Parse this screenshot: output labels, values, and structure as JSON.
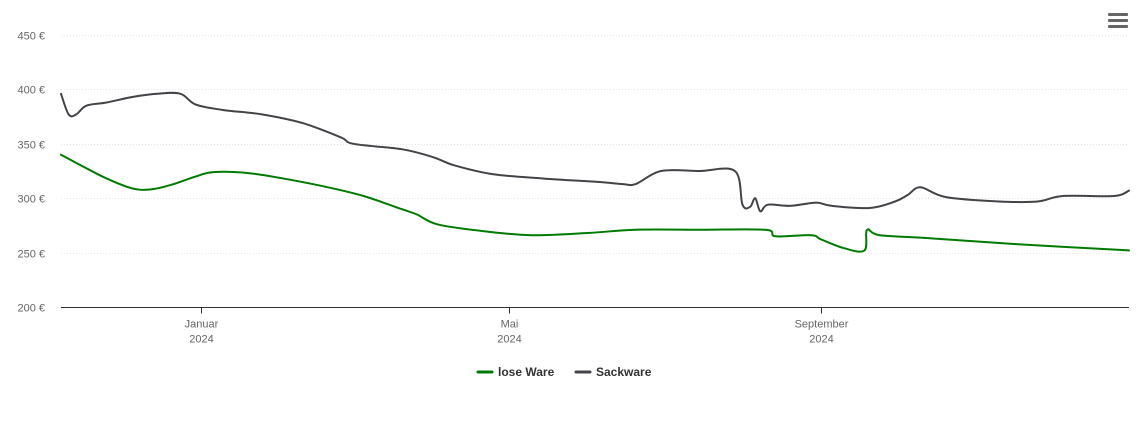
{
  "chart_data": {
    "type": "line",
    "x_axis_ticks": [
      {
        "date": "2024-01-01",
        "month": "Januar",
        "year": "2024"
      },
      {
        "date": "2024-05-01",
        "month": "Mai",
        "year": "2024"
      },
      {
        "date": "2024-09-01",
        "month": "September",
        "year": "2024"
      }
    ],
    "xlim": [
      "2023-11-07",
      "2024-12-31"
    ],
    "ylim": [
      200,
      450
    ],
    "y_ticks": [
      {
        "value": 200,
        "label": "200 €"
      },
      {
        "value": 250,
        "label": "250 €"
      },
      {
        "value": 300,
        "label": "300 €"
      },
      {
        "value": 350,
        "label": "350 €"
      },
      {
        "value": 400,
        "label": "400 €"
      },
      {
        "value": 450,
        "label": "450 €"
      }
    ],
    "grid": true,
    "legend_position": "bottom-center",
    "series": [
      {
        "name": "lose Ware",
        "color": "#007a00",
        "points": [
          [
            "2023-11-07",
            340
          ],
          [
            "2023-11-15",
            330
          ],
          [
            "2023-11-25",
            318
          ],
          [
            "2023-12-05",
            309
          ],
          [
            "2023-12-12",
            308
          ],
          [
            "2023-12-20",
            312
          ],
          [
            "2023-12-30",
            320
          ],
          [
            "2024-01-06",
            324
          ],
          [
            "2024-01-20",
            323
          ],
          [
            "2024-02-05",
            317
          ],
          [
            "2024-02-20",
            310
          ],
          [
            "2024-03-05",
            302
          ],
          [
            "2024-03-20",
            290
          ],
          [
            "2024-03-26",
            285
          ],
          [
            "2024-04-03",
            276
          ],
          [
            "2024-04-20",
            270
          ],
          [
            "2024-05-10",
            266
          ],
          [
            "2024-06-01",
            268
          ],
          [
            "2024-06-20",
            271
          ],
          [
            "2024-07-15",
            271
          ],
          [
            "2024-08-10",
            271
          ],
          [
            "2024-08-14",
            265
          ],
          [
            "2024-08-28",
            266
          ],
          [
            "2024-09-01",
            262
          ],
          [
            "2024-09-10",
            254
          ],
          [
            "2024-09-18",
            252
          ],
          [
            "2024-09-19",
            271
          ],
          [
            "2024-09-24",
            266
          ],
          [
            "2024-10-15",
            263
          ],
          [
            "2024-11-15",
            258
          ],
          [
            "2024-12-31",
            252
          ]
        ]
      },
      {
        "name": "Sackware",
        "color": "#434348",
        "points": [
          [
            "2023-11-07",
            396
          ],
          [
            "2023-11-10",
            377
          ],
          [
            "2023-11-13",
            377
          ],
          [
            "2023-11-17",
            385
          ],
          [
            "2023-11-25",
            388
          ],
          [
            "2023-12-05",
            393
          ],
          [
            "2023-12-15",
            396
          ],
          [
            "2023-12-24",
            396
          ],
          [
            "2023-12-30",
            386
          ],
          [
            "2024-01-10",
            381
          ],
          [
            "2024-01-25",
            377
          ],
          [
            "2024-02-10",
            369
          ],
          [
            "2024-02-25",
            356
          ],
          [
            "2024-03-01",
            350
          ],
          [
            "2024-03-20",
            345
          ],
          [
            "2024-04-01",
            338
          ],
          [
            "2024-04-10",
            330
          ],
          [
            "2024-04-25",
            322
          ],
          [
            "2024-05-15",
            318
          ],
          [
            "2024-06-05",
            315
          ],
          [
            "2024-06-15",
            313
          ],
          [
            "2024-06-20",
            313
          ],
          [
            "2024-06-30",
            325
          ],
          [
            "2024-07-15",
            325
          ],
          [
            "2024-07-29",
            325
          ],
          [
            "2024-08-01",
            294
          ],
          [
            "2024-08-04",
            292
          ],
          [
            "2024-08-06",
            300
          ],
          [
            "2024-08-08",
            288
          ],
          [
            "2024-08-11",
            294
          ],
          [
            "2024-08-20",
            293
          ],
          [
            "2024-08-30",
            296
          ],
          [
            "2024-09-05",
            293
          ],
          [
            "2024-09-20",
            291
          ],
          [
            "2024-09-30",
            297
          ],
          [
            "2024-10-05",
            303
          ],
          [
            "2024-10-10",
            310
          ],
          [
            "2024-10-20",
            301
          ],
          [
            "2024-11-10",
            297
          ],
          [
            "2024-11-25",
            297
          ],
          [
            "2024-12-05",
            302
          ],
          [
            "2024-12-25",
            302
          ],
          [
            "2024-12-31",
            307
          ]
        ]
      }
    ]
  },
  "menu": {
    "icon": "hamburger-menu-icon"
  }
}
